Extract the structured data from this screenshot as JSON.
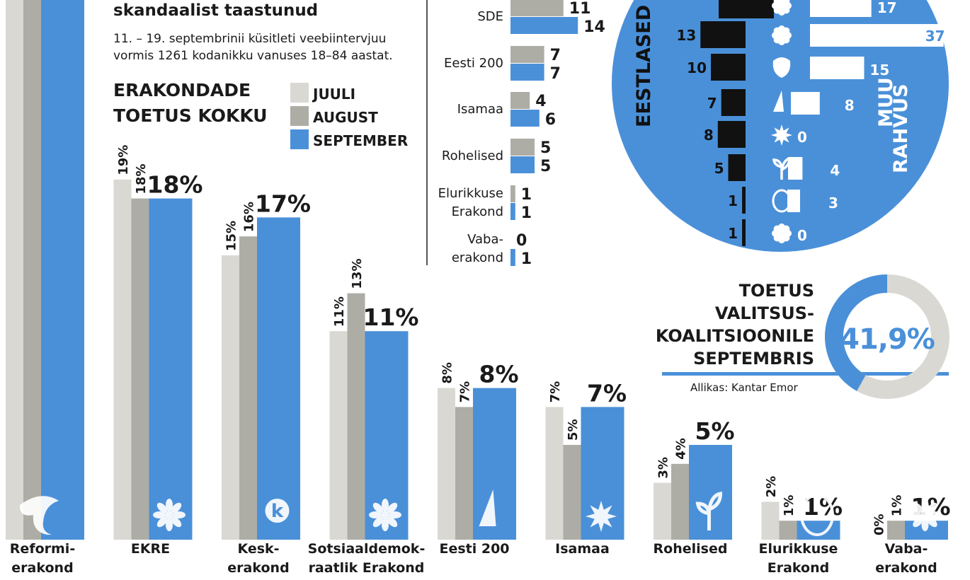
{
  "header": {
    "subtitle": "skandaalist taastunud",
    "method_line1": "11. – 19. septembrinii küsitleti veebiintervjuu",
    "method_line2": "vormis 1261 kodanikku vanuses 18–84 aastat."
  },
  "colors": {
    "juuli": "#d9d8d3",
    "august": "#aeada5",
    "september": "#4a90d9",
    "black": "#111111",
    "circle": "#4a90d9"
  },
  "main_chart": {
    "title_line1": "ERAKONDADE",
    "title_line2": "TOETUS KOKKU",
    "legend": [
      "JUULI",
      "AUGUST",
      "SEPTEMBER"
    ]
  },
  "chart_data": [
    {
      "type": "bar",
      "title": "ERAKONDADE TOETUS KOKKU",
      "categories": [
        [
          "Reformi-",
          "erakond"
        ],
        [
          "EKRE"
        ],
        [
          "Kesk-",
          "erakond"
        ],
        [
          "Sotsiaaldemok-",
          "raatlik Erakond"
        ],
        [
          "Eesti 200"
        ],
        [
          "Isamaa"
        ],
        [
          "Rohelised"
        ],
        [
          "Elurikkuse",
          "Erakond"
        ],
        [
          "Vaba-",
          "erakond"
        ]
      ],
      "icons": [
        "squirrel-icon",
        "cornflower-icon",
        "k-flower-icon",
        "rose-icon",
        "sail-icon",
        "star-icon",
        "sprout-icon",
        "egg-icon",
        "flower-cluster-icon"
      ],
      "series": [
        {
          "name": "JUULI",
          "values": [
            null,
            19,
            15,
            11,
            8,
            7,
            3,
            2,
            0
          ]
        },
        {
          "name": "AUGUST",
          "values": [
            null,
            18,
            16,
            13,
            7,
            5,
            4,
            1,
            1
          ]
        },
        {
          "name": "SEPTEMBER",
          "values": [
            null,
            18,
            17,
            11,
            8,
            7,
            5,
            1,
            1
          ]
        }
      ],
      "value_suffix": "%",
      "legend_position": "top"
    },
    {
      "type": "bar",
      "orientation": "horizontal",
      "categories": [
        [
          "SDE"
        ],
        [
          "Eesti 200"
        ],
        [
          "Isamaa"
        ],
        [
          "Rohelised"
        ],
        [
          "Elurikkuse",
          "Erakond"
        ],
        [
          "Vaba-",
          "erakond"
        ]
      ],
      "series": [
        {
          "name": "AUGUST",
          "values": [
            11,
            7,
            4,
            5,
            1,
            0
          ]
        },
        {
          "name": "SEPTEMBER",
          "values": [
            14,
            7,
            6,
            5,
            1,
            1
          ]
        }
      ]
    },
    {
      "type": "bar",
      "orientation": "horizontal",
      "label_left": "EESTLASED",
      "label_right_line1": "MUU",
      "label_right_line2": "RAHVUS",
      "icons": [
        "cornflower-icon",
        "k-flower-icon",
        "rose-icon",
        "sail-icon",
        "star-icon",
        "sprout-icon",
        "egg-icon",
        "flower-cluster-icon"
      ],
      "series": [
        {
          "name": "EESTLASED",
          "values": [
            null,
            13,
            10,
            7,
            8,
            5,
            1,
            1
          ]
        },
        {
          "name": "MUU RAHVUS",
          "values": [
            17,
            37,
            15,
            8,
            0,
            4,
            3,
            0
          ]
        }
      ]
    },
    {
      "type": "pie",
      "title": "TOETUS VALITSUS- KOALITSIOONILE SEPTEMBRIS",
      "value": 41.9,
      "value_label": "41,9%"
    }
  ],
  "coalition": {
    "lines": [
      "TOETUS",
      "VALITSUS-",
      "KOALITSIOONILE",
      "SEPTEMBRIS"
    ],
    "value_label": "41,9%",
    "source": "Allikas: Kantar Emor"
  }
}
